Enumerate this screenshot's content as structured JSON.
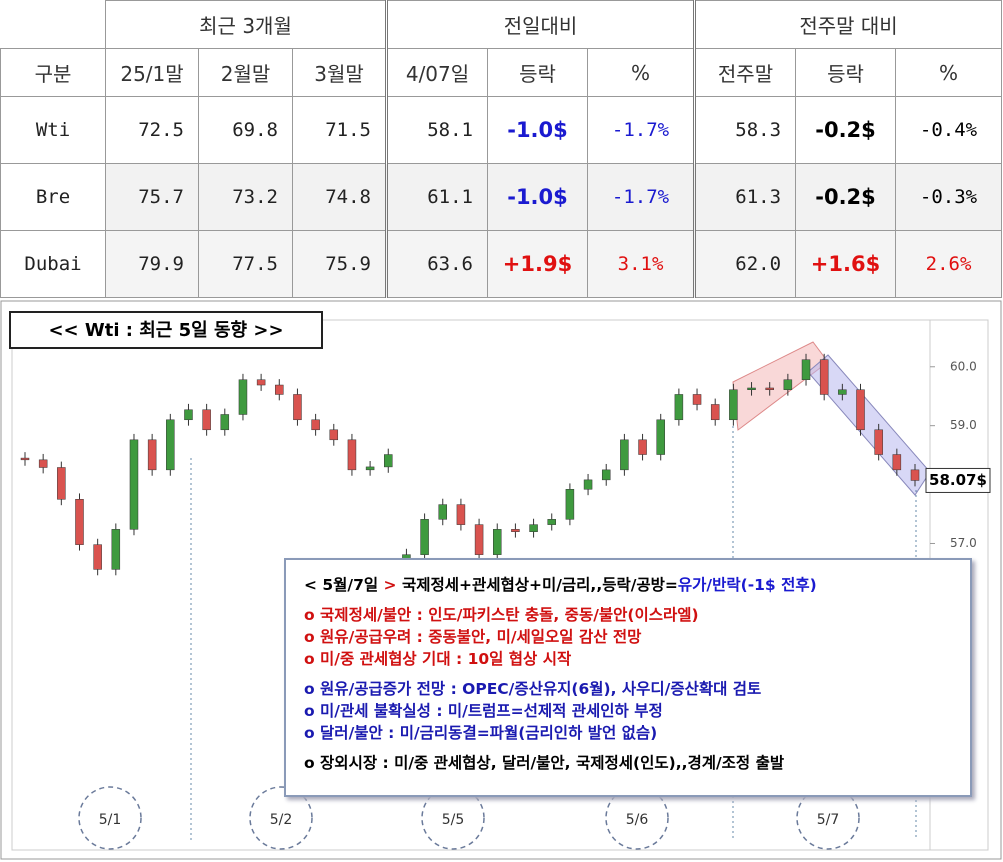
{
  "table": {
    "groups": [
      "최근 3개월",
      "전일대비",
      "전주말 대비"
    ],
    "columns": [
      "구분",
      "25/1말",
      "2월말",
      "3월말",
      "4/07일",
      "등락",
      "%",
      "전주말",
      "등락",
      "%"
    ],
    "rows": [
      [
        "Wti",
        "72.5",
        "69.8",
        "71.5",
        "58.1",
        "-1.0$",
        "-1.7%",
        "58.3",
        "-0.2$",
        "-0.4%"
      ],
      [
        "Bre",
        "75.7",
        "73.2",
        "74.8",
        "61.1",
        "-1.0$",
        "-1.7%",
        "61.3",
        "-0.2$",
        "-0.3%"
      ],
      [
        "Dubai",
        "79.9",
        "77.5",
        "75.9",
        "63.6",
        "+1.9$",
        "3.1%",
        "62.0",
        "+1.6$",
        "2.6%"
      ]
    ],
    "change_colors": [
      [
        "#1a1ad0",
        "#000000"
      ],
      [
        "#1a1ad0",
        "#000000"
      ],
      [
        "#e01010",
        "#e01010"
      ]
    ]
  },
  "chart_data": {
    "type": "candlestick",
    "title": "<< Wti : 최근 5일 동향 >>",
    "x_labels": [
      "5/1",
      "5/2",
      "5/5",
      "5/6",
      "5/7"
    ],
    "open": [
      58.45,
      58.42,
      58.29,
      57.75,
      56.98,
      56.56,
      57.24,
      58.76,
      58.25,
      59.1,
      59.27,
      58.93,
      59.19,
      59.78,
      59.69,
      59.53,
      59.1,
      58.93,
      58.76,
      58.25,
      58.3,
      56.7,
      56.81,
      57.41,
      57.66,
      57.32,
      56.81,
      57.24,
      57.2,
      57.32,
      57.41,
      57.92,
      58.08,
      58.25,
      58.76,
      58.51,
      59.1,
      59.53,
      59.36,
      59.1,
      59.61,
      59.64,
      59.61,
      59.78,
      60.12,
      59.53,
      59.61,
      58.93,
      58.51,
      58.25
    ],
    "high": [
      58.55,
      58.52,
      58.39,
      57.85,
      57.08,
      57.34,
      58.86,
      58.86,
      59.2,
      59.37,
      59.37,
      59.29,
      59.88,
      59.88,
      59.79,
      59.63,
      59.2,
      59.03,
      58.86,
      58.4,
      58.61,
      56.91,
      57.51,
      57.76,
      57.76,
      57.42,
      57.34,
      57.34,
      57.42,
      57.51,
      58.02,
      58.18,
      58.35,
      58.86,
      58.86,
      59.2,
      59.63,
      59.63,
      59.46,
      59.71,
      59.74,
      59.74,
      59.88,
      60.22,
      60.22,
      59.71,
      59.71,
      59.03,
      58.61,
      58.35
    ],
    "low": [
      58.32,
      58.19,
      57.65,
      56.88,
      56.46,
      56.46,
      57.14,
      58.15,
      58.15,
      59.0,
      58.83,
      58.83,
      59.09,
      59.59,
      59.43,
      59.0,
      58.83,
      58.66,
      58.15,
      58.15,
      58.2,
      56.6,
      56.71,
      57.31,
      57.22,
      56.71,
      56.71,
      57.1,
      57.1,
      57.22,
      57.31,
      57.82,
      57.98,
      58.15,
      58.41,
      58.41,
      59.0,
      59.26,
      59.0,
      59.0,
      59.51,
      59.51,
      59.51,
      59.68,
      59.43,
      59.43,
      58.83,
      58.41,
      58.15,
      57.97
    ],
    "close": [
      58.42,
      58.29,
      57.75,
      56.98,
      56.56,
      57.24,
      58.76,
      58.25,
      59.1,
      59.27,
      58.93,
      59.19,
      59.78,
      59.69,
      59.53,
      59.1,
      58.93,
      58.76,
      58.25,
      58.3,
      58.51,
      56.81,
      57.41,
      57.66,
      57.32,
      56.81,
      57.24,
      57.2,
      57.32,
      57.41,
      57.92,
      58.08,
      58.25,
      58.76,
      58.51,
      59.1,
      59.53,
      59.36,
      59.1,
      59.61,
      59.64,
      59.61,
      59.78,
      60.12,
      59.53,
      59.61,
      58.93,
      58.51,
      58.25,
      58.07
    ],
    "up_color": "#3f9a3f",
    "down_color": "#d9534f",
    "ylim": [
      52.0,
      60.76
    ],
    "yticks": [
      {
        "value": 60,
        "label": "60.0"
      },
      {
        "value": 59,
        "label": "59.0"
      },
      {
        "value": 57,
        "label": "57.0"
      }
    ],
    "last_price_label": "58.07$",
    "notes": {
      "title": [
        {
          "text": "< ",
          "color": "#000000"
        },
        {
          "text": "5월/7일",
          "color": "#000000"
        },
        {
          "text": " > ",
          "color": "#d01010"
        },
        {
          "text": "국제정세+관세협상+미/금리,,등락/공방=",
          "color": "#000000"
        },
        {
          "text": "유가/반락(-1$ 전후)",
          "color": "#1a1ad0"
        }
      ],
      "groups": [
        {
          "color": "#d01010",
          "items": [
            "o 국제정세/불안 : 인도/파키스탄 충돌, 중동/불안(이스라엘)",
            "o 원유/공급우려 : 중동불안, 미/세일오일 감산 전망",
            "o 미/중 관세협상 기대 : 10일 협상 시작"
          ]
        },
        {
          "color": "#1a1ab0",
          "items": [
            "o 원유/공급증가 전망 : OPEC/증산유지(6월), 사우디/증산확대 검토",
            "o 미/관세 불확실성 : 미/트럼프=선제적 관세인하 부정",
            "o 달러/불안 : 미/금리동결=파월(금리인하 발언 없슴)"
          ]
        },
        {
          "color": "#000000",
          "items": [
            "o 장외시장 : 미/중 관세협상, 달러/불안, 국제정세(인도),,경계/조정 출발"
          ]
        }
      ]
    }
  }
}
